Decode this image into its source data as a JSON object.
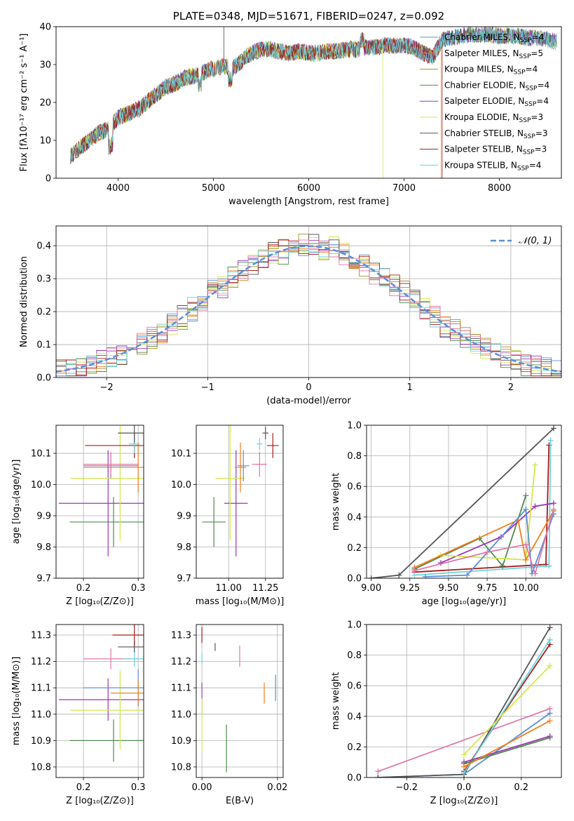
{
  "colors": {
    "chabrier_miles": "#5b8fd6",
    "salpeter_miles": "#f07f1c",
    "kroupa_miles": "#b08a2a",
    "chabrier_elodie": "#4f8a4f",
    "salpeter_elodie": "#9a35b8",
    "kroupa_elodie": "#d2e84a",
    "chabrier_stelib": "#555555",
    "salpeter_stelib": "#a51c1c",
    "kroupa_stelib": "#6dd3dd",
    "pink": "#e078a8",
    "normal": "#5b8fd6"
  },
  "chart_data": [
    {
      "id": "spectrum",
      "type": "line",
      "title": "PLATE=0348, MJD=51671, FIBERID=0247, z=0.092",
      "xlabel": "wavelength [Angstrom, rest frame]",
      "ylabel": "Flux [fλ10⁻¹⁷ erg cm⁻² s⁻¹ A⁻¹]",
      "xlim": [
        3350,
        8650
      ],
      "ylim": [
        0,
        40
      ],
      "xticks": [
        "4000",
        "5000",
        "6000",
        "7000",
        "8000"
      ],
      "yticks": [
        "0",
        "10",
        "20",
        "30",
        "40"
      ],
      "grid": false,
      "legend_position": "top-right",
      "series": [
        {
          "name": "Chabrier MILES, N_SSP=4",
          "color_key": "chabrier_miles"
        },
        {
          "name": "Salpeter MILES, N_SSP=5",
          "color_key": "salpeter_miles"
        },
        {
          "name": "Kroupa MILES, N_SSP=4",
          "color_key": "kroupa_miles"
        },
        {
          "name": "Chabrier ELODIE, N_SSP=4",
          "color_key": "chabrier_elodie"
        },
        {
          "name": "Salpeter ELODIE, N_SSP=4",
          "color_key": "salpeter_elodie"
        },
        {
          "name": "Kroupa ELODIE, N_SSP=3",
          "color_key": "kroupa_elodie"
        },
        {
          "name": "Chabrier STELIB, N_SSP=3",
          "color_key": "chabrier_stelib"
        },
        {
          "name": "Salpeter STELIB, N_SSP=3",
          "color_key": "salpeter_stelib"
        },
        {
          "name": "Kroupa STELIB, N_SSP=4",
          "color_key": "kroupa_stelib"
        }
      ],
      "continuum": {
        "x": [
          3500,
          3600,
          3700,
          3800,
          3900,
          4000,
          4100,
          4200,
          4300,
          4400,
          4500,
          4600,
          4700,
          4800,
          4900,
          5000,
          5100,
          5200,
          5300,
          5400,
          5500,
          5600,
          5700,
          5800,
          5900,
          6000,
          6100,
          6200,
          6300,
          6400,
          6500,
          6600,
          6700,
          6800,
          6900,
          7000,
          7100,
          7200,
          7300,
          7400,
          7500,
          7600,
          7700,
          7800,
          7900,
          8000,
          8100,
          8200,
          8300,
          8400,
          8500,
          8600
        ],
        "y": [
          6,
          8,
          10,
          12,
          13,
          16,
          17,
          18,
          20,
          22,
          24,
          25,
          26.5,
          27,
          28,
          29,
          29.5,
          29,
          31,
          33,
          34,
          34,
          33.5,
          33,
          33.5,
          33,
          33,
          33.5,
          33.5,
          34,
          34,
          34.5,
          34.5,
          35,
          35,
          35,
          34.5,
          33,
          32,
          36.5,
          37,
          37.5,
          38,
          38,
          38,
          37.5,
          37.5,
          37.5,
          37,
          37,
          36.5,
          36
        ]
      },
      "cutoffs": [
        {
          "series_color_key": "kroupa_elodie",
          "x_end": 6780
        },
        {
          "series_color_key": "salpeter_miles",
          "x_end": 7390
        },
        {
          "series_color_key": "salpeter_stelib",
          "x_end": 7400
        }
      ]
    },
    {
      "id": "residuals",
      "type": "histogram",
      "xlabel": "(data-model)/error",
      "ylabel": "Normed distribution",
      "xlim": [
        -2.5,
        2.5
      ],
      "ylim": [
        0,
        0.46
      ],
      "xticks": [
        "−2",
        "−1",
        "0",
        "1",
        "2"
      ],
      "yticks": [
        "0.0",
        "0.1",
        "0.2",
        "0.3",
        "0.4"
      ],
      "grid": true,
      "legend": "𝒩(0, 1)",
      "legend_position": "top-right",
      "bin_width": 0.1
    },
    {
      "id": "z_age",
      "type": "errorbar",
      "xlabel": "Z [log₁₀(Z/Z⊙)]",
      "ylabel": "age  [log₁₀(age/yr)]",
      "xlim": [
        0.15,
        0.31
      ],
      "ylim": [
        9.7,
        10.19
      ],
      "xticks": [
        "0.2",
        "0.3"
      ],
      "yticks": [
        "9.7",
        "9.8",
        "9.9",
        "10.0",
        "10.1"
      ],
      "grid": true,
      "points": [
        {
          "color_key": "chabrier_elodie",
          "x": 0.255,
          "xerr": 0.08,
          "y": 9.88,
          "yerr": 0.08
        },
        {
          "color_key": "salpeter_elodie",
          "x": 0.245,
          "xerr": 0.09,
          "y": 9.94,
          "yerr": 0.17
        },
        {
          "color_key": "kroupa_elodie",
          "x": 0.267,
          "xerr": 0.09,
          "y": 10.02,
          "yerr": 0.2
        },
        {
          "color_key": "chabrier_miles",
          "x": 0.25,
          "xerr": 0.05,
          "y": 10.06,
          "yerr": 0.04
        },
        {
          "color_key": "pink",
          "x": 0.25,
          "xerr": 0.05,
          "y": 10.065,
          "yerr": 0.04
        },
        {
          "color_key": "salpeter_miles",
          "x": 0.3,
          "xerr": 0.1,
          "y": 10.055,
          "yerr": 0.08
        },
        {
          "color_key": "salpeter_stelib",
          "x": 0.293,
          "xerr": 0.09,
          "y": 10.125,
          "yerr": 0.04
        },
        {
          "color_key": "kroupa_stelib",
          "x": 0.293,
          "xerr": 0.01,
          "y": 10.13,
          "yerr": 0.03
        },
        {
          "color_key": "chabrier_stelib",
          "x": 0.293,
          "xerr": 0.03,
          "y": 10.165,
          "yerr": 0.03
        }
      ]
    },
    {
      "id": "mass_age",
      "type": "errorbar",
      "xlabel": "mass [log₁₀(M/M⊙)]",
      "ylabel": "",
      "xlim": [
        10.78,
        11.37
      ],
      "ylim": [
        9.7,
        10.19
      ],
      "xticks": [
        "11.00",
        "11.25"
      ],
      "yticks": [
        "9.7",
        "9.8",
        "9.9",
        "10.0",
        "10.1"
      ],
      "grid": true,
      "points": [
        {
          "color_key": "chabrier_elodie",
          "x": 10.9,
          "xerr": 0.08,
          "y": 9.88,
          "yerr": 0.08
        },
        {
          "color_key": "salpeter_elodie",
          "x": 11.05,
          "xerr": 0.08,
          "y": 9.94,
          "yerr": 0.17
        },
        {
          "color_key": "kroupa_elodie",
          "x": 11.01,
          "xerr": 0.1,
          "y": 10.02,
          "yerr": 0.2
        },
        {
          "color_key": "chabrier_miles",
          "x": 11.1,
          "xerr": 0.04,
          "y": 10.06,
          "yerr": 0.05
        },
        {
          "color_key": "salpeter_miles",
          "x": 11.08,
          "xerr": 0.04,
          "y": 10.055,
          "yerr": 0.08
        },
        {
          "color_key": "pink",
          "x": 11.21,
          "xerr": 0.05,
          "y": 10.065,
          "yerr": 0.04
        },
        {
          "color_key": "kroupa_stelib",
          "x": 11.21,
          "xerr": 0.02,
          "y": 10.13,
          "yerr": 0.02
        },
        {
          "color_key": "chabrier_stelib",
          "x": 11.25,
          "xerr": 0.02,
          "y": 10.165,
          "yerr": 0.02
        },
        {
          "color_key": "salpeter_stelib",
          "x": 11.3,
          "xerr": 0.04,
          "y": 10.125,
          "yerr": 0.04
        }
      ]
    },
    {
      "id": "age_weight",
      "type": "line",
      "xlabel": "age  [log₁₀(age/yr)]",
      "ylabel": "mass weight",
      "xlim": [
        8.97,
        10.23
      ],
      "ylim": [
        0,
        1
      ],
      "xticks": [
        "9.00",
        "9.25",
        "9.50",
        "9.75",
        "10.00"
      ],
      "yticks": [
        "0.0",
        "0.2",
        "0.4",
        "0.6",
        "0.8",
        "1.0"
      ],
      "grid": true,
      "series": [
        {
          "color_key": "chabrier_stelib",
          "x": [
            9.0,
            9.18,
            10.18
          ],
          "y": [
            0.0,
            0.02,
            0.98
          ]
        },
        {
          "color_key": "salpeter_stelib",
          "x": [
            9.28,
            10.13,
            10.15
          ],
          "y": [
            0.04,
            0.09,
            0.87
          ]
        },
        {
          "color_key": "kroupa_stelib",
          "x": [
            9.28,
            10.15,
            10.16
          ],
          "y": [
            0.02,
            0.08,
            0.9
          ]
        },
        {
          "color_key": "chabrier_elodie",
          "x": [
            9.28,
            9.7,
            9.85,
            10.0
          ],
          "y": [
            0.06,
            0.26,
            0.08,
            0.54
          ]
        },
        {
          "color_key": "salpeter_elodie",
          "x": [
            9.45,
            9.84,
            10.06,
            10.18
          ],
          "y": [
            0.1,
            0.27,
            0.47,
            0.49
          ]
        },
        {
          "color_key": "kroupa_elodie",
          "x": [
            9.45,
            10.0,
            10.06
          ],
          "y": [
            0.15,
            0.12,
            0.74
          ]
        },
        {
          "color_key": "salpeter_miles",
          "x": [
            9.28,
            9.95,
            10.0,
            10.18
          ],
          "y": [
            0.07,
            0.38,
            0.12,
            0.44
          ]
        },
        {
          "color_key": "chabrier_miles",
          "x": [
            9.35,
            9.62,
            10.0,
            10.04,
            10.18
          ],
          "y": [
            0.01,
            0.02,
            0.45,
            0.03,
            0.42
          ]
        },
        {
          "color_key": "pink",
          "x": [
            9.28,
            9.75,
            10.0,
            10.06,
            10.18
          ],
          "y": [
            0.05,
            0.17,
            0.22,
            0.03,
            0.45
          ]
        }
      ]
    },
    {
      "id": "z_mass",
      "type": "errorbar",
      "xlabel": "Z [log₁₀(Z/Z⊙)]",
      "ylabel": "mass [log₁₀(M/M⊙)]",
      "xlim": [
        0.15,
        0.31
      ],
      "ylim": [
        10.76,
        11.34
      ],
      "xticks": [
        "0.2",
        "0.3"
      ],
      "yticks": [
        "10.8",
        "10.9",
        "11.0",
        "11.1",
        "11.2",
        "11.3"
      ],
      "grid": true,
      "points": [
        {
          "color_key": "chabrier_elodie",
          "x": 0.255,
          "xerr": 0.08,
          "y": 10.9,
          "yerr": 0.08
        },
        {
          "color_key": "salpeter_elodie",
          "x": 0.245,
          "xerr": 0.09,
          "y": 11.055,
          "yerr": 0.08
        },
        {
          "color_key": "kroupa_elodie",
          "x": 0.267,
          "xerr": 0.09,
          "y": 11.015,
          "yerr": 0.15
        },
        {
          "color_key": "chabrier_miles",
          "x": 0.3,
          "xerr": 0.1,
          "y": 11.1,
          "yerr": 0.07
        },
        {
          "color_key": "salpeter_miles",
          "x": 0.3,
          "xerr": 0.05,
          "y": 11.08,
          "yerr": 0.05
        },
        {
          "color_key": "pink",
          "x": 0.25,
          "xerr": 0.05,
          "y": 11.21,
          "yerr": 0.04
        },
        {
          "color_key": "kroupa_stelib",
          "x": 0.293,
          "xerr": 0.02,
          "y": 11.21,
          "yerr": 0.03
        },
        {
          "color_key": "chabrier_stelib",
          "x": 0.293,
          "xerr": 0.03,
          "y": 11.255,
          "yerr": 0.02
        },
        {
          "color_key": "salpeter_stelib",
          "x": 0.293,
          "xerr": 0.04,
          "y": 11.3,
          "yerr": 0.04
        }
      ]
    },
    {
      "id": "ebv_mass",
      "type": "errorbar",
      "xlabel": "E(B-V)",
      "ylabel": "",
      "xlim": [
        -0.0015,
        0.0215
      ],
      "ylim": [
        10.76,
        11.34
      ],
      "xticks": [
        "0.00",
        "0.02"
      ],
      "yticks": [
        "10.8",
        "10.9",
        "11.0",
        "11.1",
        "11.2",
        "11.3"
      ],
      "grid": true,
      "points": [
        {
          "color_key": "salpeter_stelib",
          "x": 0.0,
          "xerr": 0.0,
          "y": 11.3,
          "yerr": 0.03
        },
        {
          "color_key": "chabrier_stelib",
          "x": 0.0035,
          "xerr": 0.0,
          "y": 11.255,
          "yerr": 0.015
        },
        {
          "color_key": "kroupa_stelib",
          "x": 0.0,
          "xerr": 0.0,
          "y": 11.21,
          "yerr": 0.02
        },
        {
          "color_key": "pink",
          "x": 0.01,
          "xerr": 0.0,
          "y": 11.22,
          "yerr": 0.04
        },
        {
          "color_key": "salpeter_elodie",
          "x": 0.0,
          "xerr": 0.0,
          "y": 11.06,
          "yerr": 0.06
        },
        {
          "color_key": "kroupa_elodie",
          "x": 0.0,
          "xerr": 0.0,
          "y": 10.96,
          "yerr": 0.1
        },
        {
          "color_key": "chabrier_elodie",
          "x": 0.0065,
          "xerr": 0.0,
          "y": 10.87,
          "yerr": 0.09
        },
        {
          "color_key": "salpeter_miles",
          "x": 0.0165,
          "xerr": 0.0,
          "y": 11.08,
          "yerr": 0.04
        },
        {
          "color_key": "chabrier_miles",
          "x": 0.0195,
          "xerr": 0.0,
          "y": 11.1,
          "yerr": 0.05
        }
      ]
    },
    {
      "id": "z_weight",
      "type": "line",
      "xlabel": "Z [log₁₀(Z/Z⊙)]",
      "ylabel": "mass weight",
      "xlim": [
        -0.34,
        0.34
      ],
      "ylim": [
        0,
        1
      ],
      "xticks": [
        "−0.2",
        "0.0",
        "0.2"
      ],
      "yticks": [
        "0.0",
        "0.2",
        "0.4",
        "0.6",
        "0.8",
        "1.0"
      ],
      "grid": true,
      "series": [
        {
          "color_key": "pink",
          "x": [
            -0.3,
            0.3
          ],
          "y": [
            0.04,
            0.45
          ]
        },
        {
          "color_key": "chabrier_miles",
          "x": [
            -0.3,
            0.0,
            0.3
          ],
          "y": [
            0.0,
            0.02,
            0.42
          ]
        },
        {
          "color_key": "chabrier_stelib",
          "x": [
            -0.3,
            0.0,
            0.3
          ],
          "y": [
            0.0,
            0.02,
            0.98
          ]
        },
        {
          "color_key": "salpeter_stelib",
          "x": [
            0.0,
            0.3
          ],
          "y": [
            0.04,
            0.87
          ]
        },
        {
          "color_key": "kroupa_stelib",
          "x": [
            0.0,
            0.3
          ],
          "y": [
            0.03,
            0.9
          ]
        },
        {
          "color_key": "kroupa_elodie",
          "x": [
            0.0,
            0.3
          ],
          "y": [
            0.15,
            0.73
          ]
        },
        {
          "color_key": "salpeter_elodie",
          "x": [
            0.0,
            0.3
          ],
          "y": [
            0.1,
            0.27
          ]
        },
        {
          "color_key": "chabrier_elodie",
          "x": [
            0.0,
            0.3
          ],
          "y": [
            0.09,
            0.26
          ]
        },
        {
          "color_key": "salpeter_miles",
          "x": [
            0.0,
            0.3
          ],
          "y": [
            0.07,
            0.37
          ]
        }
      ]
    }
  ]
}
